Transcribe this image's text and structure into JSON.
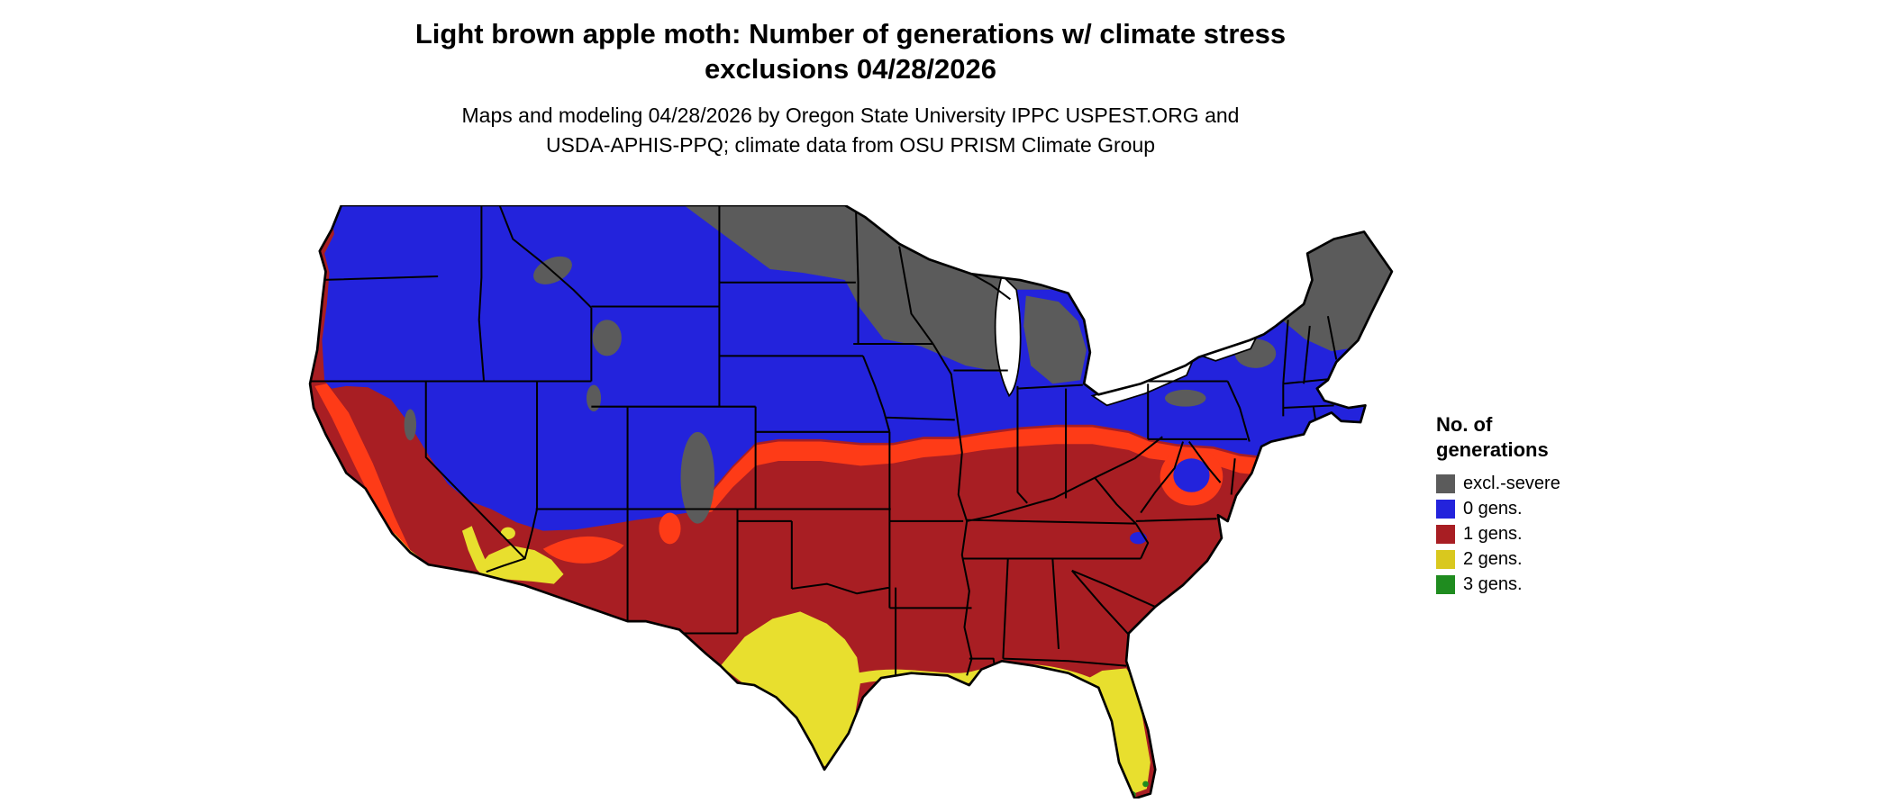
{
  "header": {
    "title_line1": "Light brown apple moth: Number of generations w/ climate stress",
    "title_line2": "exclusions 04/28/2026",
    "subtitle_line1": "Maps and modeling 04/28/2026 by Oregon State University IPPC USPEST.ORG and",
    "subtitle_line2": "USDA-APHIS-PPQ; climate data from OSU PRISM Climate Group"
  },
  "legend": {
    "title_line1": "No. of",
    "title_line2": "generations",
    "items": [
      {
        "key": "excl-severe",
        "label": "excl.-severe",
        "color": "#5B5B5B"
      },
      {
        "key": "0-gens",
        "label": "0 gens.",
        "color": "#2323DC"
      },
      {
        "key": "1-gens",
        "label": "1 gens.",
        "color": "#A81E23"
      },
      {
        "key": "2-gens",
        "label": "2 gens.",
        "color": "#D9C81E"
      },
      {
        "key": "3-gens",
        "label": "3 gens.",
        "color": "#1F8C1F"
      }
    ]
  },
  "map": {
    "name": "conus-light-brown-apple-moth-generations",
    "colors": {
      "excl_severe": "#5B5B5B",
      "gens0": "#2323DC",
      "gens1": "#A81E23",
      "gens1_warm": "#FE3B17",
      "gens2": "#E8DF2E",
      "gens3": "#1F8C1F",
      "border": "#000000",
      "water": "#FFFFFF"
    }
  }
}
